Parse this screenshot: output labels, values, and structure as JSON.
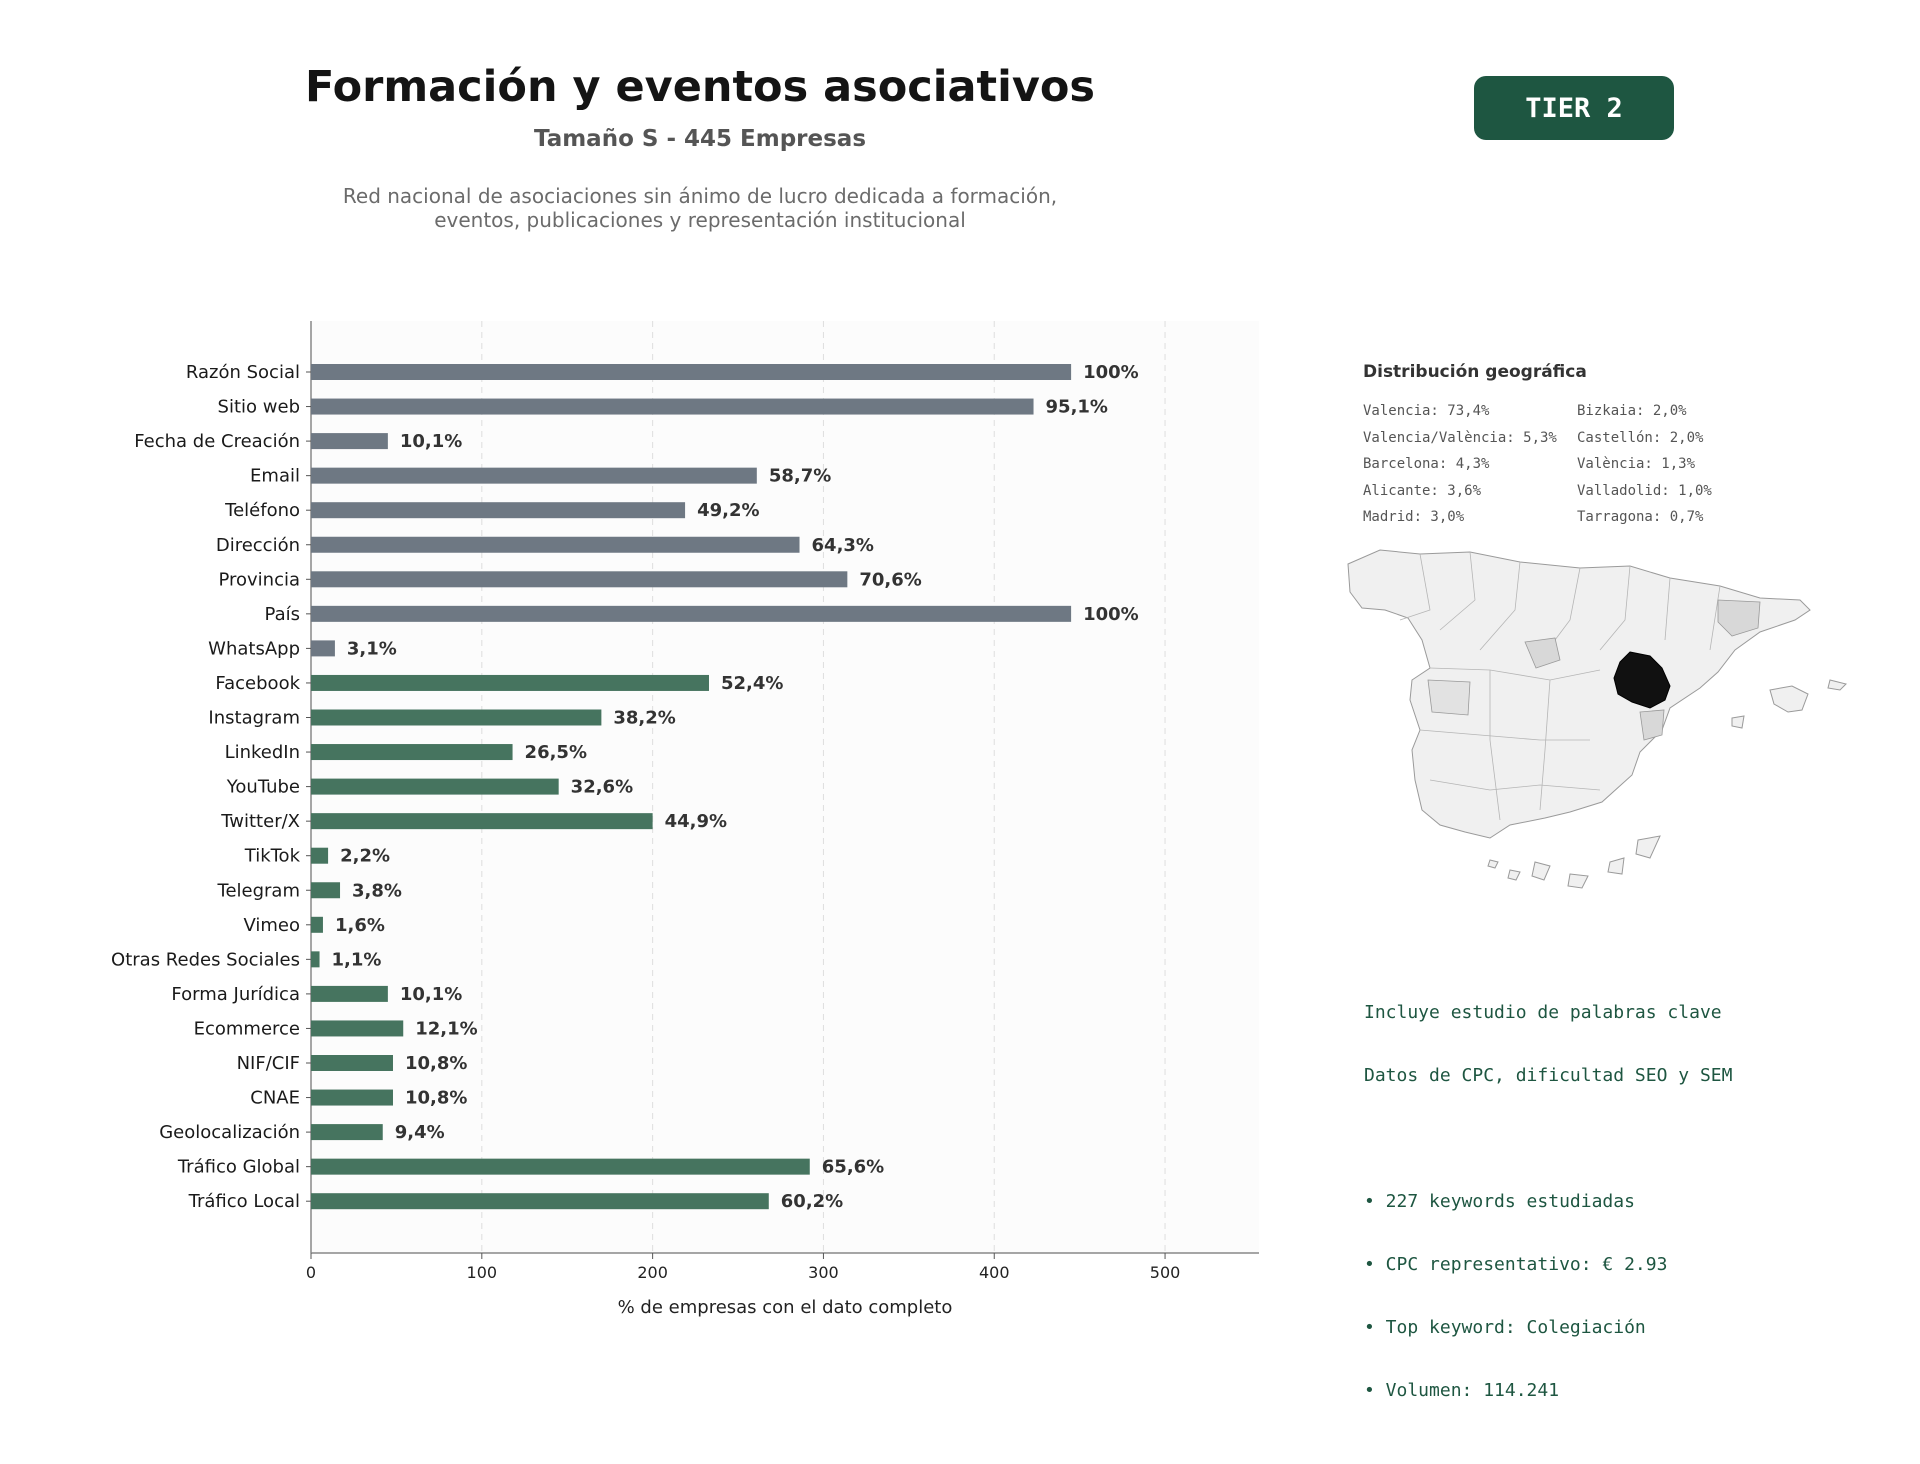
{
  "header": {
    "title": "Formación y eventos asociativos",
    "subtitle": "Tamaño S - 445 Empresas",
    "description_line1": "Red nacional de asociaciones sin ánimo de lucro dedicada a formación,",
    "description_line2": "eventos, publicaciones y representación institucional",
    "tier_label": "TIER 2"
  },
  "colors": {
    "gray_bar": "#6e7883",
    "green_bar": "#46745f",
    "brand_green": "#1e5641",
    "map_highlight": "#111111",
    "map_region": "#f0f0f0"
  },
  "chart_data": {
    "type": "bar",
    "orientation": "horizontal",
    "xlabel": "% de empresas con el dato completo",
    "xlim": [
      0,
      555
    ],
    "xticks": [
      0,
      100,
      200,
      300,
      400,
      500
    ],
    "grid": "vertical dashed",
    "categories": [
      "Razón Social",
      "Sitio web",
      "Fecha de Creación",
      "Email",
      "Teléfono",
      "Dirección",
      "Provincia",
      "País",
      "WhatsApp",
      "Facebook",
      "Instagram",
      "LinkedIn",
      "YouTube",
      "Twitter/X",
      "TikTok",
      "Telegram",
      "Vimeo",
      "Otras Redes Sociales",
      "Forma Jurídica",
      "Ecommerce",
      "NIF/CIF",
      "CNAE",
      "Geolocalización",
      "Tráfico Global",
      "Tráfico Local"
    ],
    "values": [
      445,
      423,
      45,
      261,
      219,
      286,
      314,
      445,
      14,
      233,
      170,
      118,
      145,
      200,
      10,
      17,
      7,
      5,
      45,
      54,
      48,
      48,
      42,
      292,
      268
    ],
    "labels": [
      "100%",
      "95,1%",
      "10,1%",
      "58,7%",
      "49,2%",
      "64,3%",
      "70,6%",
      "100%",
      "3,1%",
      "52,4%",
      "38,2%",
      "26,5%",
      "32,6%",
      "44,9%",
      "2,2%",
      "3,8%",
      "1,6%",
      "1,1%",
      "10,1%",
      "12,1%",
      "10,8%",
      "10,8%",
      "9,4%",
      "65,6%",
      "60,2%"
    ],
    "groups": [
      "gray",
      "gray",
      "gray",
      "gray",
      "gray",
      "gray",
      "gray",
      "gray",
      "gray",
      "green",
      "green",
      "green",
      "green",
      "green",
      "green",
      "green",
      "green",
      "green",
      "green",
      "green",
      "green",
      "green",
      "green",
      "green",
      "green"
    ]
  },
  "geo": {
    "title": "Distribución geográfica",
    "col1": [
      "Valencia: 73,4%",
      "Valencia/València: 5,3%",
      "Barcelona: 4,3%",
      "Alicante: 3,6%",
      "Madrid: 3,0%"
    ],
    "col2": [
      "Bizkaia: 2,0%",
      "Castellón: 2,0%",
      "València: 1,3%",
      "Valladolid: 1,0%",
      "Tarragona: 0,7%"
    ]
  },
  "seo": {
    "line1": "Incluye estudio de palabras clave",
    "line2": "Datos de CPC, dificultad SEO y SEM",
    "bullets": [
      "• 227 keywords estudiadas",
      "• CPC representativo: € 2.93",
      "• Top keyword: Colegiación",
      "• Volumen: 114.241"
    ]
  }
}
